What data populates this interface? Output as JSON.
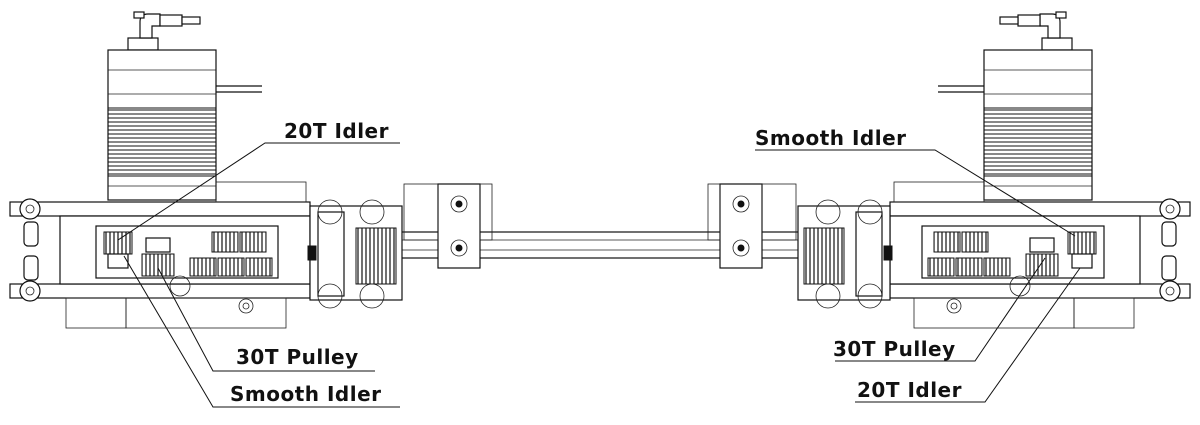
{
  "labels": {
    "top_left": "20T Idler",
    "bottom_left_1": "30T Pulley",
    "bottom_left_2": "Smooth Idler",
    "top_right": "Smooth Idler",
    "bottom_right_1": "30T Pulley",
    "bottom_right_2": "20T Idler"
  }
}
